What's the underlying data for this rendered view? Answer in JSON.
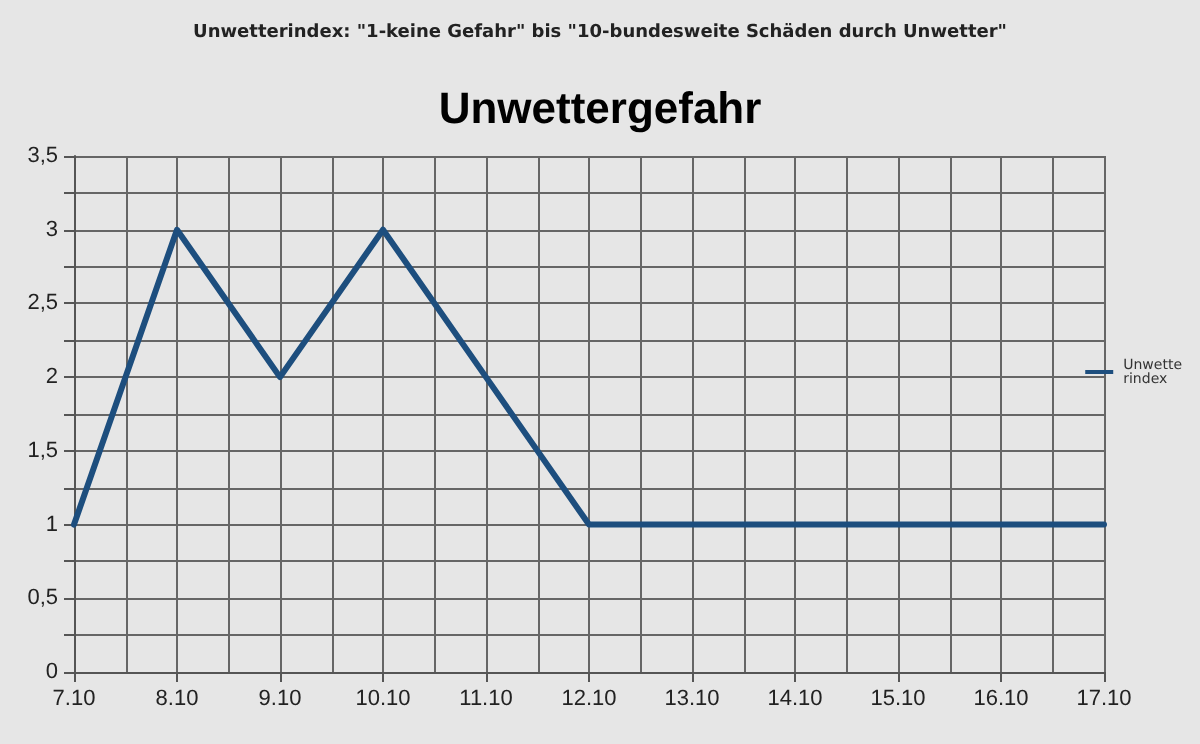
{
  "chart_data": {
    "type": "line",
    "title": "Unwettergefahr",
    "annotations": [
      "Unwetterindex: \"1-keine Gefahr\" bis \"10-bundesweite Schäden durch Unwetter\""
    ],
    "categories": [
      "7.10",
      "8.10",
      "9.10",
      "10.10",
      "11.10",
      "12.10",
      "13.10",
      "14.10",
      "15.10",
      "16.10",
      "17.10"
    ],
    "series": [
      {
        "name": "Unwetterindex",
        "color": "#1d4e7e",
        "values": [
          1,
          3,
          2,
          3,
          2,
          1,
          1,
          1,
          1,
          1,
          1
        ]
      }
    ],
    "ylim": [
      0,
      3.5
    ],
    "yticks": [
      0,
      {
        "value": 0.25,
        "label": null
      },
      {
        "value": 0.5,
        "label": "0,5"
      },
      {
        "value": 0.75,
        "label": null
      },
      1,
      {
        "value": 1.25,
        "label": null
      },
      {
        "value": 1.5,
        "label": "1,5"
      },
      {
        "value": 1.75,
        "label": null
      },
      2,
      {
        "value": 2.25,
        "label": null
      },
      {
        "value": 2.5,
        "label": "2,5"
      },
      {
        "value": 2.75,
        "label": null
      },
      3,
      {
        "value": 3.25,
        "label": null
      },
      {
        "value": 3.5,
        "label": "3,5"
      }
    ],
    "grid": true,
    "legend": "right",
    "marker": "none",
    "line_style": "solid"
  }
}
